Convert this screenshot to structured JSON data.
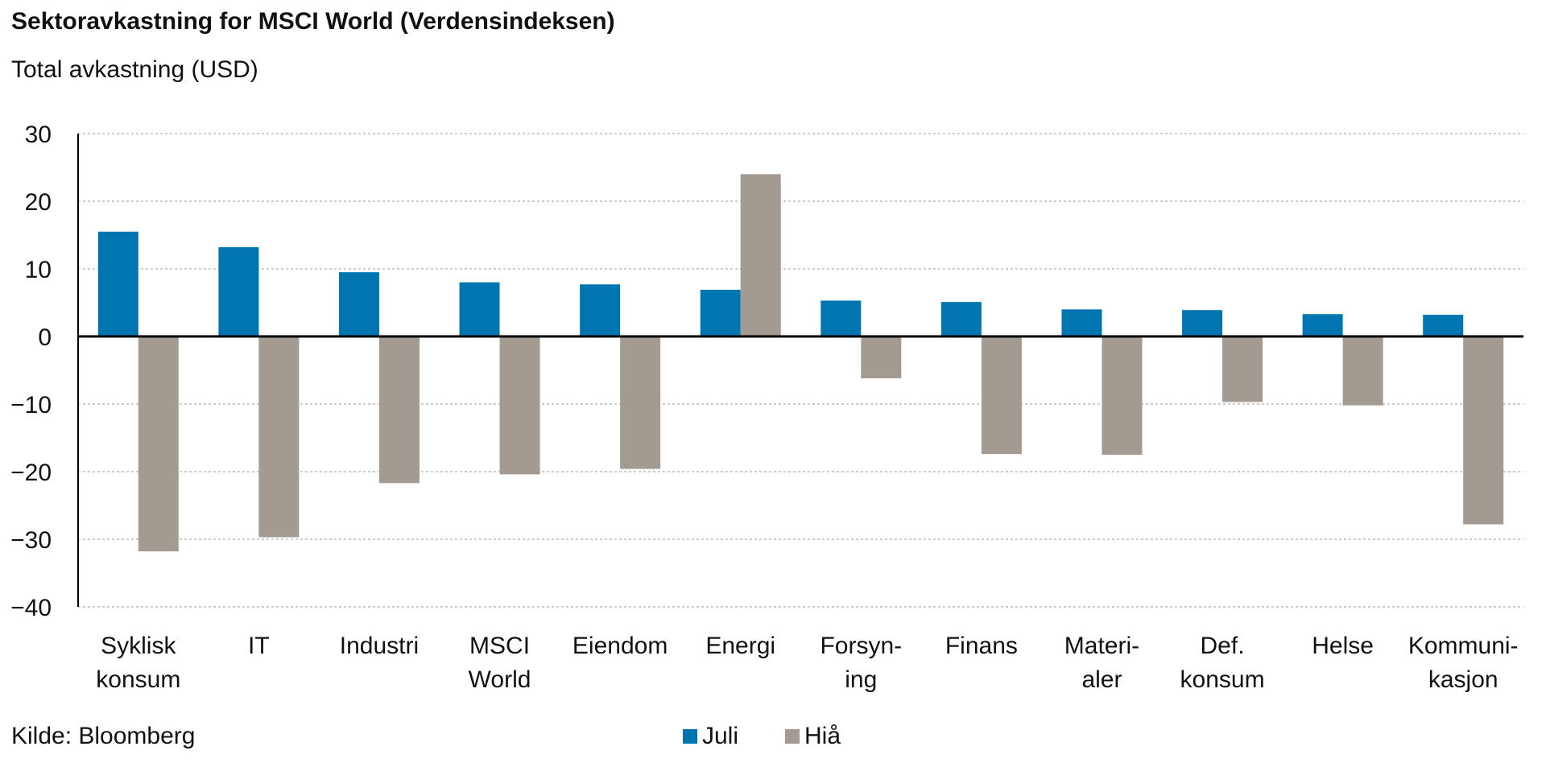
{
  "chart_data": {
    "type": "bar",
    "title": "Sektoravkastning for MSCI World (Verdensindeksen)",
    "subtitle": "Total avkastning (USD)",
    "source": "Kilde: Bloomberg",
    "categories": [
      [
        "Syklisk",
        "konsum"
      ],
      [
        "IT"
      ],
      [
        "Industri"
      ],
      [
        "MSCI",
        "World"
      ],
      [
        "Eiendom"
      ],
      [
        "Energi"
      ],
      [
        "Forsyn-",
        "ing"
      ],
      [
        "Finans"
      ],
      [
        "Materi-",
        "aler"
      ],
      [
        "Def.",
        "konsum"
      ],
      [
        "Helse"
      ],
      [
        "Kommuni-",
        "kasjon"
      ]
    ],
    "series": [
      {
        "name": "Juli",
        "color": "#0075b0",
        "values": [
          15.5,
          13.2,
          9.5,
          8.0,
          7.7,
          6.9,
          5.3,
          5.1,
          4.0,
          3.9,
          3.3,
          3.2
        ]
      },
      {
        "name": "Hiå",
        "color": "#a39a92",
        "values": [
          -31.8,
          -29.7,
          -21.7,
          -20.4,
          -19.6,
          24.0,
          -6.2,
          -17.4,
          -17.5,
          -9.7,
          -10.2,
          -27.8
        ]
      }
    ],
    "ylim": [
      -40,
      30
    ],
    "yticks": [
      30,
      20,
      10,
      0,
      -10,
      -20,
      -30,
      -40
    ],
    "grid": true,
    "legend_position": "bottom-center"
  }
}
